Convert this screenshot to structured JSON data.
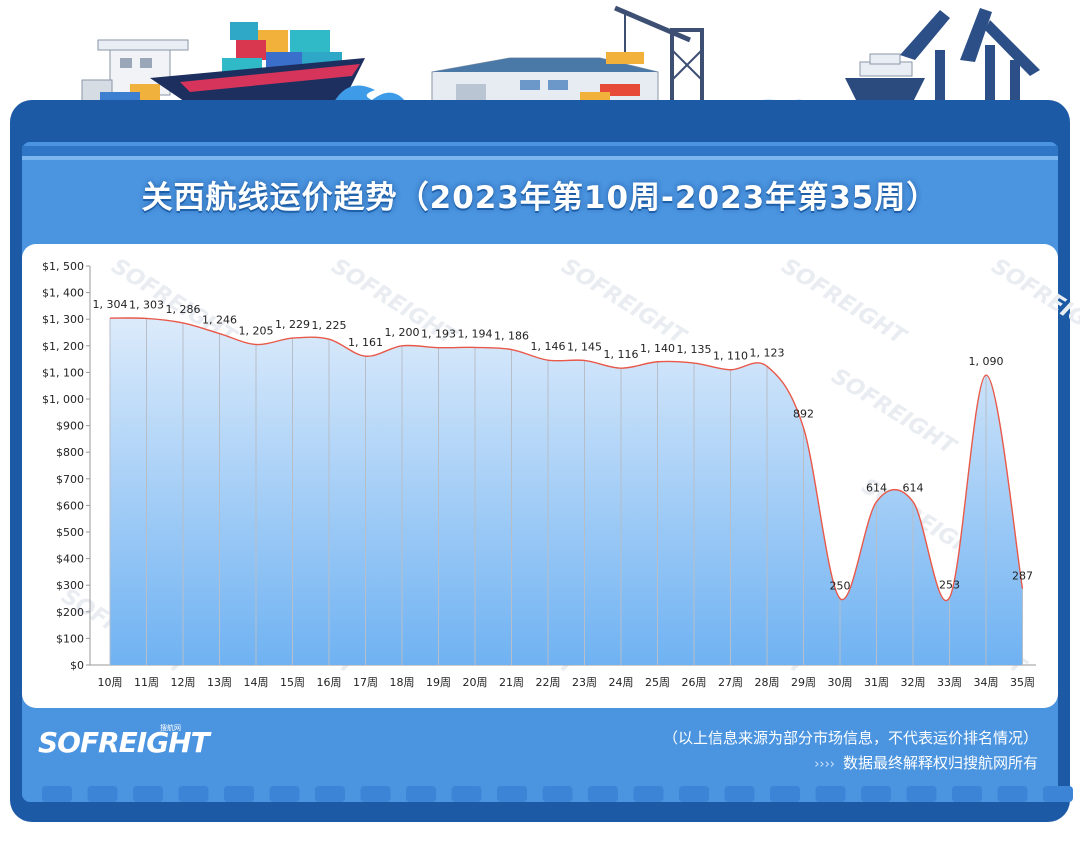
{
  "page": {
    "title": "关西航线运价趋势（2023年第10周-2023年第35周）",
    "logo": "SOFREIGHT",
    "logo_sub": "搜航网",
    "watermark": "SOFREIGHT",
    "footer_note": "（以上信息来源为部分市场信息，不代表运价排名情况）",
    "footer_arrows": "››››",
    "footer_copyright": "数据最终解释权归搜航网所有"
  },
  "colors": {
    "frame": "#1c5aa6",
    "frame_inner": "#4a94e0",
    "plot_bg": "#ffffff",
    "line": "#e8594a",
    "area_top": "#dcebfb",
    "area_bottom": "#6fb2f2"
  },
  "chart_data": {
    "type": "area",
    "title": "关西航线运价趋势（2023年第10周-2023年第35周）",
    "categories": [
      "10周",
      "11周",
      "12周",
      "13周",
      "14周",
      "15周",
      "16周",
      "17周",
      "18周",
      "19周",
      "20周",
      "21周",
      "22周",
      "23周",
      "24周",
      "25周",
      "26周",
      "27周",
      "28周",
      "29周",
      "30周",
      "31周",
      "32周",
      "33周",
      "34周",
      "35周"
    ],
    "values": [
      1304,
      1303,
      1286,
      1246,
      1205,
      1229,
      1225,
      1161,
      1200,
      1193,
      1194,
      1186,
      1146,
      1145,
      1116,
      1140,
      1135,
      1110,
      1123,
      892,
      250,
      614,
      614,
      253,
      1090,
      287
    ],
    "data_labels": [
      "1, 304",
      "1, 303",
      "1, 286",
      "1, 246",
      "1, 205",
      "1, 229",
      "1, 225",
      "1, 161",
      "1, 200",
      "1, 193",
      "1, 194",
      "1, 186",
      "1, 146",
      "1, 145",
      "1, 116",
      "1, 140",
      "1, 135",
      "1, 110",
      "1, 123",
      "892",
      "250",
      "614",
      "614",
      "253",
      "1, 090",
      "287"
    ],
    "y_ticks": [
      "$0",
      "$100",
      "$200",
      "$300",
      "$400",
      "$500",
      "$600",
      "$700",
      "$800",
      "$900",
      "$1, 000",
      "$1, 100",
      "$1, 200",
      "$1, 300",
      "$1, 400",
      "$1, 500"
    ],
    "ylim": [
      0,
      1500
    ],
    "xlabel": "",
    "ylabel": "",
    "grid": "vertical"
  }
}
